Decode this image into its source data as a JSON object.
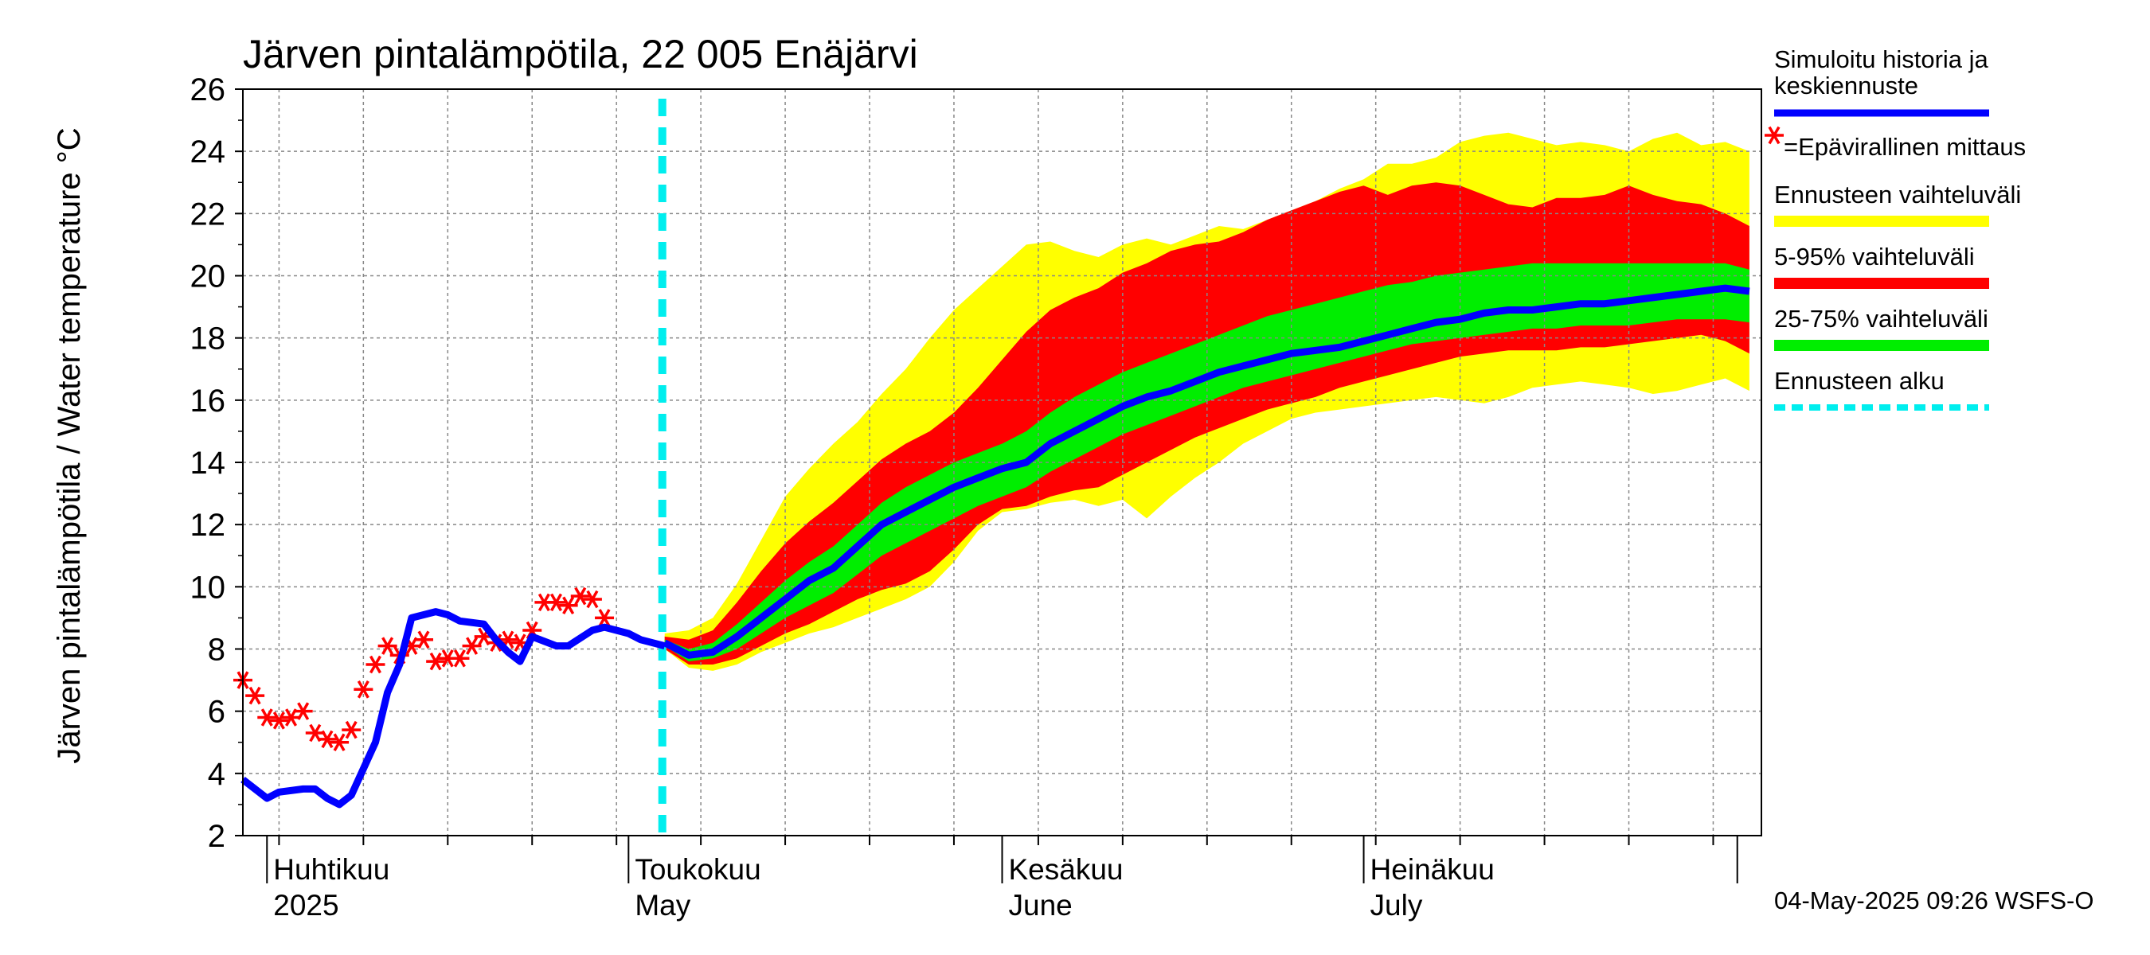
{
  "chart_data": {
    "type": "line",
    "title": "Järven pintalämpötila, 22 005 Enäjärvi",
    "ylabel": "Järven pintalämpötila / Water temperature °C",
    "x_range": [
      "2025-03-30",
      "2025-08-03"
    ],
    "ylim": [
      2,
      26
    ],
    "y_ticks": [
      "2",
      "4",
      "6",
      "8",
      "10",
      "12",
      "14",
      "16",
      "18",
      "20",
      "22",
      "24",
      "26"
    ],
    "grid": true,
    "month_labels": [
      {
        "date": "2025-04-01",
        "fi": "Huhtikuu",
        "en": "2025"
      },
      {
        "date": "2025-05-01",
        "fi": "Toukokuu",
        "en": "May"
      },
      {
        "date": "2025-06-01",
        "fi": "Kesäkuu",
        "en": "June"
      },
      {
        "date": "2025-07-01",
        "fi": "Heinäkuu",
        "en": "July"
      }
    ],
    "forecast_start": "2025-05-04",
    "history": {
      "x": [
        "2025-03-30",
        "2025-04-01",
        "2025-04-02",
        "2025-04-04",
        "2025-04-05",
        "2025-04-06",
        "2025-04-07",
        "2025-04-08",
        "2025-04-10",
        "2025-04-11",
        "2025-04-12",
        "2025-04-13",
        "2025-04-15",
        "2025-04-16",
        "2025-04-17",
        "2025-04-19",
        "2025-04-20",
        "2025-04-21",
        "2025-04-22",
        "2025-04-23",
        "2025-04-25",
        "2025-04-26",
        "2025-04-28",
        "2025-04-29",
        "2025-05-01",
        "2025-05-02",
        "2025-05-03",
        "2025-05-04"
      ],
      "y": [
        3.8,
        3.2,
        3.4,
        3.5,
        3.5,
        3.2,
        3.0,
        3.3,
        5.0,
        6.6,
        7.5,
        9.0,
        9.2,
        9.1,
        8.9,
        8.8,
        8.3,
        7.9,
        7.6,
        8.4,
        8.1,
        8.1,
        8.6,
        8.7,
        8.5,
        8.3,
        8.2,
        8.1
      ]
    },
    "observations": {
      "x": [
        "2025-03-30",
        "2025-03-31",
        "2025-04-01",
        "2025-04-02",
        "2025-04-03",
        "2025-04-04",
        "2025-04-05",
        "2025-04-06",
        "2025-04-07",
        "2025-04-08",
        "2025-04-09",
        "2025-04-10",
        "2025-04-11",
        "2025-04-12",
        "2025-04-13",
        "2025-04-14",
        "2025-04-15",
        "2025-04-16",
        "2025-04-17",
        "2025-04-18",
        "2025-04-19",
        "2025-04-20",
        "2025-04-21",
        "2025-04-22",
        "2025-04-23",
        "2025-04-24",
        "2025-04-25",
        "2025-04-26",
        "2025-04-27",
        "2025-04-28",
        "2025-04-29"
      ],
      "y": [
        7.0,
        6.5,
        5.8,
        5.7,
        5.8,
        6.0,
        5.3,
        5.1,
        5.0,
        5.4,
        6.7,
        7.5,
        8.1,
        7.8,
        8.1,
        8.3,
        7.6,
        7.7,
        7.7,
        8.1,
        8.4,
        8.2,
        8.3,
        8.2,
        8.6,
        9.5,
        9.5,
        9.4,
        9.7,
        9.6,
        9.0
      ]
    },
    "forecast_bands": {
      "x": [
        "2025-05-04",
        "2025-05-06",
        "2025-05-08",
        "2025-05-10",
        "2025-05-12",
        "2025-05-14",
        "2025-05-16",
        "2025-05-18",
        "2025-05-20",
        "2025-05-22",
        "2025-05-24",
        "2025-05-26",
        "2025-05-28",
        "2025-05-30",
        "2025-06-01",
        "2025-06-03",
        "2025-06-05",
        "2025-06-07",
        "2025-06-09",
        "2025-06-11",
        "2025-06-13",
        "2025-06-15",
        "2025-06-17",
        "2025-06-19",
        "2025-06-21",
        "2025-06-23",
        "2025-06-25",
        "2025-06-27",
        "2025-06-29",
        "2025-07-01",
        "2025-07-03",
        "2025-07-05",
        "2025-07-07",
        "2025-07-09",
        "2025-07-11",
        "2025-07-13",
        "2025-07-15",
        "2025-07-17",
        "2025-07-19",
        "2025-07-21",
        "2025-07-23",
        "2025-07-25",
        "2025-07-27",
        "2025-07-29",
        "2025-07-31",
        "2025-08-02"
      ],
      "median": [
        8.2,
        7.8,
        7.9,
        8.4,
        9.0,
        9.6,
        10.2,
        10.6,
        11.3,
        12.0,
        12.4,
        12.8,
        13.2,
        13.5,
        13.8,
        14.0,
        14.6,
        15.0,
        15.4,
        15.8,
        16.1,
        16.3,
        16.6,
        16.9,
        17.1,
        17.3,
        17.5,
        17.6,
        17.7,
        17.9,
        18.1,
        18.3,
        18.5,
        18.6,
        18.8,
        18.9,
        18.9,
        19.0,
        19.1,
        19.1,
        19.2,
        19.3,
        19.4,
        19.5,
        19.6,
        19.5
      ],
      "p25": [
        8.1,
        7.6,
        7.7,
        8.0,
        8.5,
        9.0,
        9.4,
        9.8,
        10.4,
        11.0,
        11.4,
        11.8,
        12.2,
        12.6,
        12.9,
        13.2,
        13.7,
        14.1,
        14.5,
        14.9,
        15.2,
        15.5,
        15.8,
        16.1,
        16.4,
        16.6,
        16.8,
        17.0,
        17.2,
        17.4,
        17.6,
        17.8,
        17.9,
        18.0,
        18.1,
        18.2,
        18.3,
        18.3,
        18.4,
        18.4,
        18.4,
        18.5,
        18.6,
        18.6,
        18.6,
        18.5
      ],
      "p75": [
        8.3,
        8.0,
        8.2,
        8.8,
        9.5,
        10.2,
        10.8,
        11.3,
        12.0,
        12.7,
        13.2,
        13.6,
        14.0,
        14.3,
        14.6,
        15.0,
        15.6,
        16.1,
        16.5,
        16.9,
        17.2,
        17.5,
        17.8,
        18.1,
        18.4,
        18.7,
        18.9,
        19.1,
        19.3,
        19.5,
        19.7,
        19.8,
        20.0,
        20.1,
        20.2,
        20.3,
        20.4,
        20.4,
        20.4,
        20.4,
        20.4,
        20.4,
        20.4,
        20.4,
        20.4,
        20.2
      ],
      "p5": [
        8.0,
        7.5,
        7.5,
        7.7,
        8.1,
        8.5,
        8.8,
        9.2,
        9.6,
        9.9,
        10.1,
        10.5,
        11.2,
        12.0,
        12.5,
        12.6,
        12.9,
        13.1,
        13.2,
        13.6,
        14.0,
        14.4,
        14.8,
        15.1,
        15.4,
        15.7,
        15.9,
        16.1,
        16.4,
        16.6,
        16.8,
        17.0,
        17.2,
        17.4,
        17.5,
        17.6,
        17.6,
        17.6,
        17.7,
        17.7,
        17.8,
        17.9,
        18.0,
        18.1,
        17.9,
        17.5
      ],
      "p95": [
        8.4,
        8.3,
        8.6,
        9.5,
        10.5,
        11.4,
        12.1,
        12.7,
        13.4,
        14.1,
        14.6,
        15.0,
        15.6,
        16.4,
        17.3,
        18.2,
        18.9,
        19.3,
        19.6,
        20.1,
        20.4,
        20.8,
        21.0,
        21.1,
        21.4,
        21.8,
        22.1,
        22.4,
        22.7,
        22.9,
        22.6,
        22.9,
        23.0,
        22.9,
        22.6,
        22.3,
        22.2,
        22.5,
        22.5,
        22.6,
        22.9,
        22.6,
        22.4,
        22.3,
        22.0,
        21.6
      ],
      "min": [
        8.0,
        7.4,
        7.3,
        7.5,
        7.9,
        8.2,
        8.5,
        8.7,
        9.0,
        9.3,
        9.6,
        10.0,
        10.8,
        11.8,
        12.4,
        12.5,
        12.7,
        12.8,
        12.6,
        12.8,
        12.2,
        12.9,
        13.5,
        14.0,
        14.6,
        15.0,
        15.4,
        15.6,
        15.7,
        15.8,
        15.9,
        16.0,
        16.1,
        16.0,
        15.9,
        16.1,
        16.4,
        16.5,
        16.6,
        16.5,
        16.4,
        16.2,
        16.3,
        16.5,
        16.7,
        16.3
      ],
      "max": [
        8.5,
        8.6,
        9.0,
        10.1,
        11.5,
        12.9,
        13.8,
        14.6,
        15.3,
        16.2,
        17.0,
        18.0,
        18.9,
        19.6,
        20.3,
        21.0,
        21.1,
        20.8,
        20.6,
        21.0,
        21.2,
        21.0,
        21.3,
        21.6,
        21.5,
        21.8,
        22.1,
        22.4,
        22.8,
        23.1,
        23.6,
        23.6,
        23.8,
        24.3,
        24.5,
        24.6,
        24.4,
        24.2,
        24.3,
        24.2,
        24.0,
        24.4,
        24.6,
        24.2,
        24.3,
        24.0
      ]
    },
    "legend": {
      "placement": "right",
      "items": [
        {
          "label": "Simuloitu historia ja keskiennuste",
          "color": "#0000ff",
          "style": "line"
        },
        {
          "label": "=Epävirallinen mittaus",
          "color": "#ff0000",
          "style": "star"
        },
        {
          "label": "Ennusteen vaihteluväli",
          "color": "#ffff00",
          "style": "band"
        },
        {
          "label": "5-95% vaihteluväli",
          "color": "#ff0000",
          "style": "band"
        },
        {
          "label": "25-75% vaihteluväli",
          "color": "#00ee00",
          "style": "band"
        },
        {
          "label": "Ennusteen alku",
          "color": "#00eeee",
          "style": "dashed"
        }
      ]
    },
    "footer": "04-May-2025 09:26 WSFS-O"
  }
}
